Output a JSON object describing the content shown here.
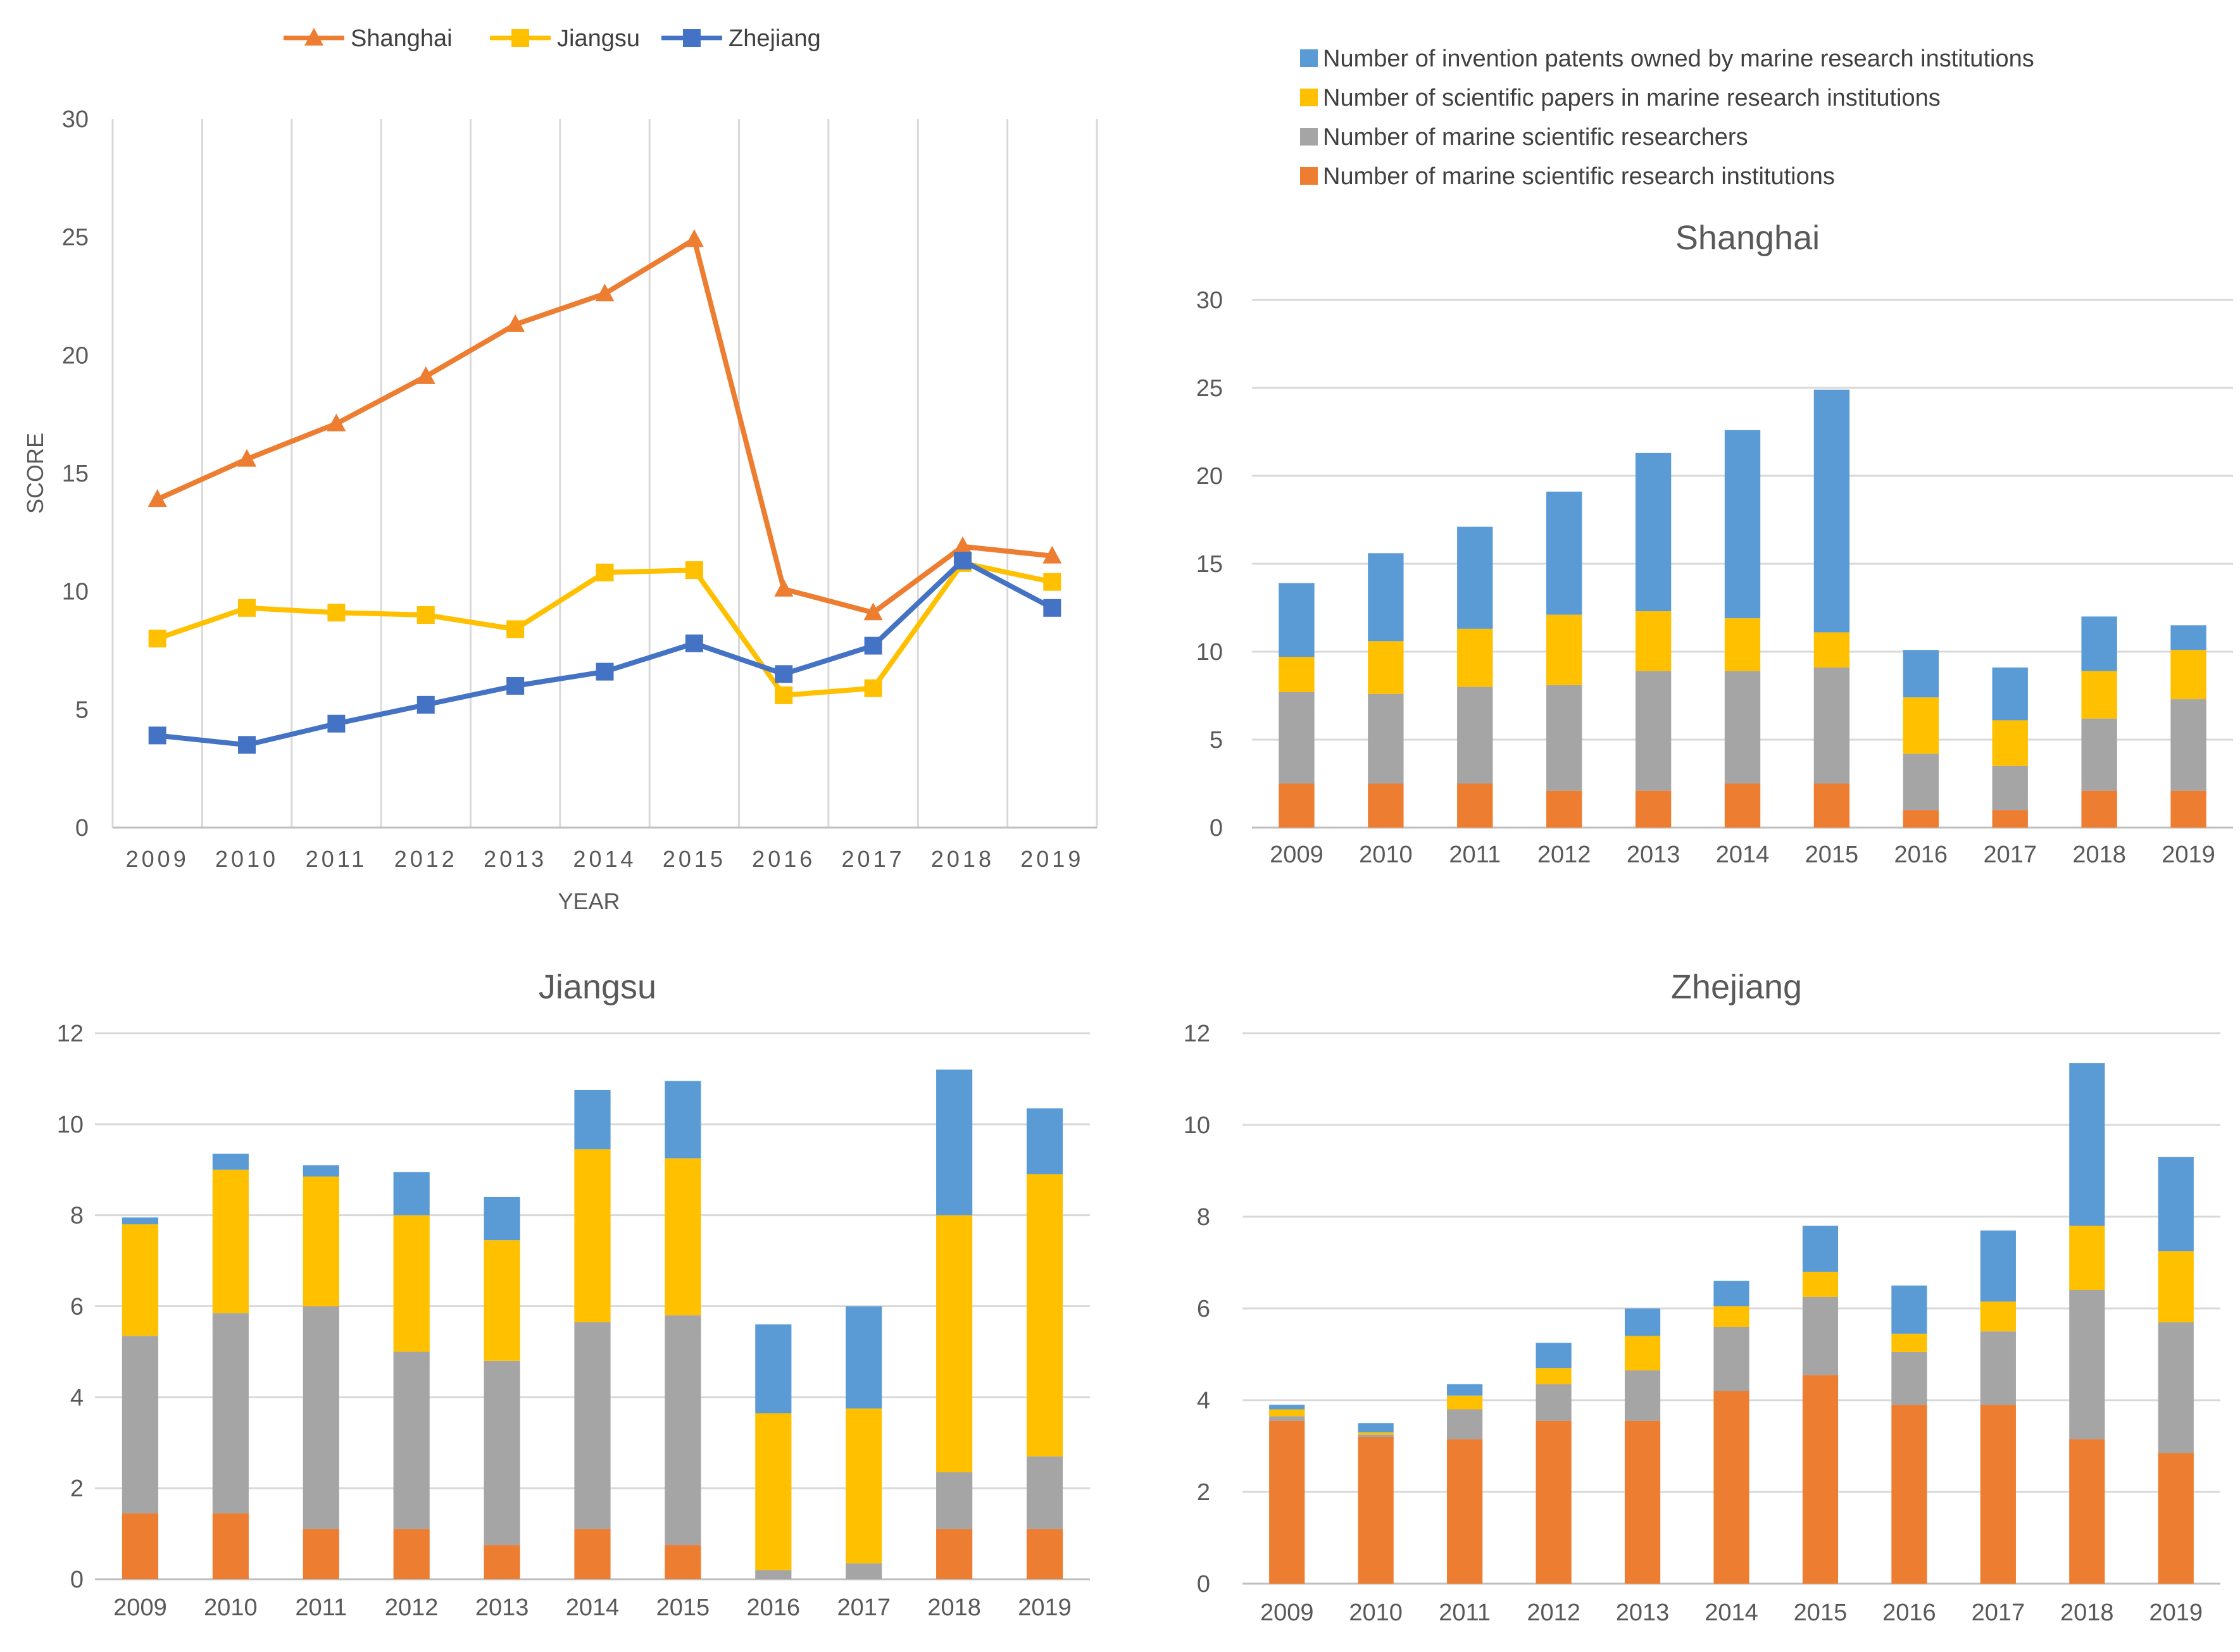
{
  "colors": {
    "shanghai": "#ED7D31",
    "jiangsu": "#FFC000",
    "zhejiang": "#4472C4",
    "institutions": "#ED7D31",
    "researchers": "#A5A5A5",
    "papers": "#FFC000",
    "patents": "#5B9BD5",
    "grid": "#D9D9D9"
  },
  "chart_data": [
    {
      "type": "line",
      "title": "",
      "xlabel": "YEAR",
      "ylabel": "SCORE",
      "ylim": [
        0,
        30
      ],
      "yticks": [
        "0",
        "5",
        "10",
        "15",
        "20",
        "25",
        "30"
      ],
      "categories": [
        "2009",
        "2010",
        "2011",
        "2012",
        "2013",
        "2014",
        "2015",
        "2016",
        "2017",
        "2018",
        "2019"
      ],
      "legend_position": "top",
      "series": [
        {
          "name": "Shanghai",
          "marker": "triangle",
          "values": [
            13.9,
            15.6,
            17.1,
            19.1,
            21.3,
            22.6,
            24.9,
            10.1,
            9.1,
            11.9,
            11.5
          ]
        },
        {
          "name": "Jiangsu",
          "marker": "square",
          "values": [
            8.0,
            9.3,
            9.1,
            9.0,
            8.4,
            10.8,
            10.9,
            5.6,
            5.9,
            11.2,
            10.4
          ]
        },
        {
          "name": "Zhejiang",
          "marker": "square",
          "values": [
            3.9,
            3.5,
            4.4,
            5.2,
            6.0,
            6.6,
            7.8,
            6.5,
            7.7,
            11.3,
            9.3
          ]
        }
      ]
    },
    {
      "type": "bar",
      "stacked": true,
      "title": "Shanghai",
      "ylim": [
        0,
        30
      ],
      "yticks": [
        "0",
        "5",
        "10",
        "15",
        "20",
        "25",
        "30"
      ],
      "categories": [
        "2009",
        "2010",
        "2011",
        "2012",
        "2013",
        "2014",
        "2015",
        "2016",
        "2017",
        "2018",
        "2019"
      ],
      "series": [
        {
          "name": "Number of marine scientific research institutions",
          "values": [
            2.5,
            2.5,
            2.5,
            2.1,
            2.1,
            2.5,
            2.5,
            1.0,
            1.0,
            2.1,
            2.1
          ]
        },
        {
          "name": "Number of marine scientific researchers",
          "values": [
            5.2,
            5.1,
            5.5,
            6.0,
            6.8,
            6.4,
            6.6,
            3.2,
            2.5,
            4.1,
            5.2
          ]
        },
        {
          "name": "Number of scientific papers in marine research institutions",
          "values": [
            2.0,
            3.0,
            3.3,
            4.0,
            3.4,
            3.0,
            2.0,
            3.2,
            2.6,
            2.7,
            2.8
          ]
        },
        {
          "name": "Number of invention patents owned by marine research institutions",
          "values": [
            4.2,
            5.0,
            5.8,
            7.0,
            9.0,
            10.7,
            13.8,
            2.7,
            3.0,
            3.1,
            1.4
          ]
        }
      ]
    },
    {
      "type": "bar",
      "stacked": true,
      "title": "Jiangsu",
      "ylim": [
        0,
        12
      ],
      "yticks": [
        "0",
        "2",
        "4",
        "6",
        "8",
        "10",
        "12"
      ],
      "categories": [
        "2009",
        "2010",
        "2011",
        "2012",
        "2013",
        "2014",
        "2015",
        "2016",
        "2017",
        "2018",
        "2019"
      ],
      "series": [
        {
          "name": "Number of marine scientific research institutions",
          "values": [
            1.45,
            1.45,
            1.1,
            1.1,
            0.75,
            1.1,
            0.75,
            0.0,
            0.0,
            1.1,
            1.1
          ]
        },
        {
          "name": "Number of marine scientific researchers",
          "values": [
            3.9,
            4.4,
            4.9,
            3.9,
            4.05,
            4.55,
            5.05,
            0.2,
            0.35,
            1.25,
            1.6
          ]
        },
        {
          "name": "Number of scientific papers in marine research institutions",
          "values": [
            2.45,
            3.15,
            2.85,
            3.0,
            2.65,
            3.8,
            3.45,
            3.45,
            3.4,
            5.65,
            6.2
          ]
        },
        {
          "name": "Number of invention patents owned by marine research institutions",
          "values": [
            0.15,
            0.35,
            0.25,
            0.95,
            0.95,
            1.3,
            1.7,
            1.95,
            2.25,
            3.2,
            1.45
          ]
        }
      ]
    },
    {
      "type": "bar",
      "stacked": true,
      "title": "Zhejiang",
      "ylim": [
        0,
        12
      ],
      "yticks": [
        "0",
        "2",
        "4",
        "6",
        "8",
        "10",
        "12"
      ],
      "categories": [
        "2009",
        "2010",
        "2011",
        "2012",
        "2013",
        "2014",
        "2015",
        "2016",
        "2017",
        "2018",
        "2019"
      ],
      "series": [
        {
          "name": "Number of marine scientific research institutions",
          "values": [
            3.55,
            3.2,
            3.15,
            3.55,
            3.55,
            4.2,
            4.55,
            3.9,
            3.9,
            3.15,
            2.85
          ]
        },
        {
          "name": "Number of marine scientific researchers",
          "values": [
            0.1,
            0.05,
            0.65,
            0.8,
            1.1,
            1.4,
            1.7,
            1.15,
            1.6,
            3.25,
            2.85
          ]
        },
        {
          "name": "Number of scientific papers in marine research institutions",
          "values": [
            0.15,
            0.05,
            0.3,
            0.35,
            0.75,
            0.45,
            0.55,
            0.4,
            0.65,
            1.4,
            1.55
          ]
        },
        {
          "name": "Number of invention patents owned by marine research institutions",
          "values": [
            0.1,
            0.2,
            0.25,
            0.55,
            0.6,
            0.55,
            1.0,
            1.05,
            1.55,
            3.55,
            2.05
          ]
        }
      ]
    }
  ],
  "stack_legend": [
    {
      "key": "patents",
      "label": "Number of invention patents owned by marine research institutions"
    },
    {
      "key": "papers",
      "label": "Number of scientific papers in marine research institutions"
    },
    {
      "key": "researchers",
      "label": "Number of marine scientific researchers"
    },
    {
      "key": "institutions",
      "label": "Number of marine scientific research institutions"
    }
  ]
}
